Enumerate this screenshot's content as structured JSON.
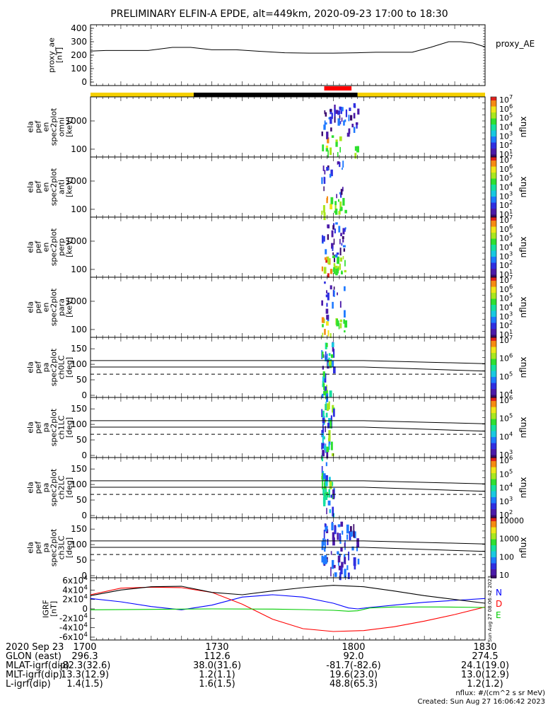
{
  "title": "PRELIMINARY ELFIN-A EPDE, alt=449km, 2020-09-23 17:00 to 18:30",
  "colors": {
    "sun": "#f5d000",
    "eclipse": "#000000",
    "science": "#ff0000",
    "N": "#0000ff",
    "E": "#00cc00",
    "D": "#ff0000"
  },
  "chart_data": [
    {
      "type": "line",
      "ylabel": "proxy_ae\n[nT]",
      "yticks": [
        "0",
        "100",
        "200",
        "300",
        "400"
      ],
      "ylim": [
        0,
        400
      ],
      "legend": "proxy_AE",
      "series": [
        {
          "name": "proxy_AE",
          "x": [
            0,
            5,
            12,
            19,
            27,
            33,
            40,
            48,
            56,
            64,
            72,
            80,
            88,
            94,
            100,
            106,
            112,
            118,
            122,
            126,
            130
          ],
          "y": [
            230,
            235,
            235,
            235,
            258,
            258,
            240,
            240,
            228,
            218,
            215,
            215,
            218,
            222,
            222,
            222,
            258,
            300,
            300,
            290,
            262
          ]
        }
      ]
    },
    {
      "type": "heatmap",
      "ylabel": "ela\npef\nen\nspec2plot\nomni\n[keV]",
      "yticks": [
        "100",
        "1000"
      ],
      "colorbar": {
        "ticks": [
          "10^1",
          "10^2",
          "10^3",
          "10^4",
          "10^5",
          "10^6",
          "10^7"
        ],
        "label": "nflux"
      }
    },
    {
      "type": "heatmap",
      "ylabel": "ela\npef\nen\nspec2plot\nanti\n[keV]",
      "yticks": [
        "100",
        "1000"
      ],
      "colorbar": {
        "ticks": [
          "10^1",
          "10^2",
          "10^3",
          "10^4",
          "10^5",
          "10^6",
          "10^7"
        ],
        "label": "nflux"
      }
    },
    {
      "type": "heatmap",
      "ylabel": "ela\npef\nen\nspec2plot\nperp\n[keV]",
      "yticks": [
        "100",
        "1000"
      ],
      "colorbar": {
        "ticks": [
          "10^1",
          "10^2",
          "10^3",
          "10^4",
          "10^5",
          "10^6",
          "10^7"
        ],
        "label": "nflux"
      }
    },
    {
      "type": "heatmap",
      "ylabel": "ela\npef\nen\nspec2plot\npara\n[keV]",
      "yticks": [
        "100",
        "1000"
      ],
      "colorbar": {
        "ticks": [
          "10^1",
          "10^2",
          "10^3",
          "10^4",
          "10^5",
          "10^6",
          "10^7"
        ],
        "label": "nflux"
      }
    },
    {
      "type": "heatmap",
      "ylabel": "ela\npef\npa\nspec2plot\nch0LC\n[deg]",
      "yticks": [
        "0",
        "50",
        "100",
        "150"
      ],
      "colorbar": {
        "ticks": [
          "10^4",
          "10^5",
          "10^6",
          "10^7"
        ],
        "label": "nflux"
      }
    },
    {
      "type": "heatmap",
      "ylabel": "ela\npef\npa\nspec2plot\nch1LC\n[deg]",
      "yticks": [
        "0",
        "50",
        "100",
        "150"
      ],
      "colorbar": {
        "ticks": [
          "10^3",
          "10^4",
          "10^5",
          "10^6"
        ],
        "label": "nflux"
      }
    },
    {
      "type": "heatmap",
      "ylabel": "ela\npef\npa\nspec2plot\nch2LC\n[deg]",
      "yticks": [
        "0",
        "50",
        "100",
        "150"
      ],
      "colorbar": {
        "ticks": [
          "10^2",
          "10^3",
          "10^4",
          "10^5",
          "10^6"
        ],
        "label": "nflux"
      }
    },
    {
      "type": "heatmap",
      "ylabel": "ela\npef\npa\nspec2plot\nch3LC\n[deg]",
      "yticks": [
        "0",
        "50",
        "100",
        "150"
      ],
      "colorbar": {
        "ticks": [
          "10",
          "100",
          "1000",
          "10000"
        ],
        "label": "nflux"
      }
    },
    {
      "type": "line",
      "ylabel": "IGRF\n[nT]",
      "yticks": [
        "-6x10^4",
        "-4x10^4",
        "-2x10^4",
        "0",
        "2x10^4",
        "4x10^4",
        "6x10^4"
      ],
      "ylim": [
        -60000,
        60000
      ],
      "legend": [
        "N",
        "D",
        "E"
      ],
      "series": [
        {
          "name": "N",
          "x": [
            0,
            10,
            20,
            30,
            40,
            50,
            60,
            70,
            80,
            85,
            88,
            92,
            100,
            110,
            120,
            130
          ],
          "y": [
            22000,
            15000,
            5000,
            -2000,
            8000,
            25000,
            30000,
            25000,
            12000,
            2000,
            0,
            3000,
            8000,
            14000,
            18000,
            22000
          ]
        },
        {
          "name": "D",
          "x": [
            0,
            10,
            20,
            30,
            40,
            50,
            60,
            70,
            80,
            90,
            100,
            110,
            120,
            130
          ],
          "y": [
            30000,
            44000,
            46000,
            45000,
            35000,
            10000,
            -22000,
            -42000,
            -48000,
            -46000,
            -38000,
            -26000,
            -12000,
            4000
          ]
        },
        {
          "name": "E",
          "x": [
            0,
            20,
            40,
            60,
            70,
            80,
            85,
            88,
            92,
            100,
            115,
            130
          ],
          "y": [
            -2000,
            -1000,
            0,
            -500,
            -1500,
            -3000,
            -5000,
            -4000,
            2000,
            4000,
            4000,
            3000
          ]
        },
        {
          "name": "",
          "x": [
            0,
            10,
            20,
            30,
            40,
            50,
            60,
            70,
            80,
            90,
            100,
            110,
            120,
            130
          ],
          "y": [
            28000,
            40000,
            47000,
            48000,
            35000,
            30000,
            38000,
            45000,
            50000,
            47000,
            38000,
            28000,
            20000,
            12000
          ]
        }
      ]
    }
  ],
  "ephemeris": {
    "rows": [
      {
        "label": "2020 Sep 23",
        "values": [
          "1700",
          "1730",
          "1800",
          "1830"
        ]
      },
      {
        "label": "GLON (east)",
        "values": [
          "296.3",
          "112.6",
          "92.0",
          "274.5"
        ]
      },
      {
        "label": "MLAT-igrf(dip)",
        "values": [
          "-82.3(32.6)",
          "38.0(31.6)",
          "-81.7(-82.6)",
          "24.1(19.0)"
        ]
      },
      {
        "label": "MLT-igrf(dip)",
        "values": [
          "13.3(12.9)",
          "1.2(1.1)",
          "19.6(23.0)",
          "13.0(12.9)"
        ]
      },
      {
        "label": "L-igrf(dip)",
        "values": [
          "1.4(1.5)",
          "1.6(1.5)",
          "48.8(65.3)",
          "1.2(1.2)"
        ]
      }
    ]
  },
  "footnote": {
    "units": "nflux: #/(cm^2 s sr MeV)",
    "created": "Created: Sun Aug 27 16:06:42 2023",
    "side_stamp": "Sun Aug 27 08:06:42 2023"
  }
}
